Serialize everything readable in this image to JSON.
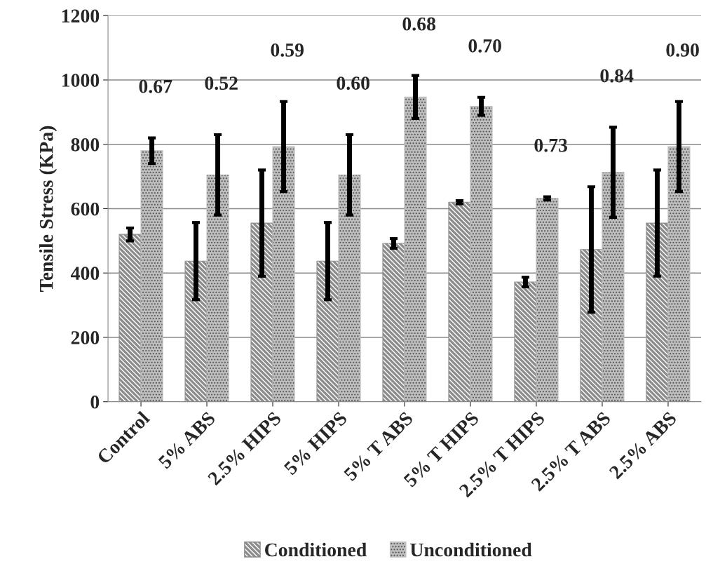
{
  "chart_data": {
    "type": "bar",
    "ylabel": "Tensile Stress (KPa)",
    "categories": [
      "Control",
      "5% ABS",
      "2.5% HIPS",
      "5% HIPS",
      "5% T ABS",
      "5% T HIPS",
      "2.5% T HIPS",
      "2.5% T ABS",
      "2.5% ABS"
    ],
    "series": [
      {
        "name": "Conditioned",
        "color": "#8c8c8c",
        "values": [
          520,
          437,
          555,
          437,
          492,
          620,
          372,
          473,
          555
        ],
        "errors": [
          20,
          120,
          165,
          120,
          15,
          5,
          15,
          195,
          165
        ]
      },
      {
        "name": "Unconditioned",
        "color": "#bfbfbf",
        "values": [
          780,
          705,
          793,
          705,
          947,
          918,
          632,
          713,
          793
        ],
        "errors": [
          40,
          125,
          140,
          125,
          67,
          28,
          5,
          140,
          140
        ]
      }
    ],
    "annotations": [
      "0.67",
      "0.52",
      "0.59",
      "0.60",
      "0.68",
      "0.70",
      "0.73",
      "0.84",
      "0.90"
    ],
    "ylim": [
      0,
      1200
    ],
    "yticks": [
      0,
      200,
      400,
      600,
      800,
      1000,
      1200
    ],
    "grid": "y",
    "legend": "bottom"
  }
}
